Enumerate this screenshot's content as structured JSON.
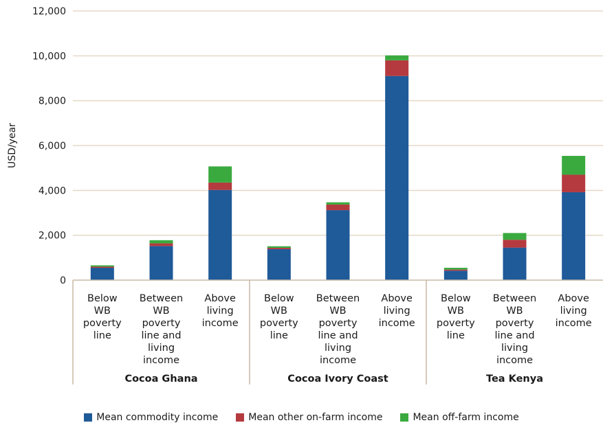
{
  "chart_data": {
    "type": "bar",
    "stacked": true,
    "ylabel": "USD/year",
    "ylim": [
      0,
      12000
    ],
    "yticks": [
      0,
      2000,
      4000,
      6000,
      8000,
      10000,
      12000
    ],
    "ytick_labels": [
      "0",
      "2,000",
      "4,000",
      "6,000",
      "8,000",
      "10,000",
      "12,000"
    ],
    "grid": "horizontal",
    "legend_position": "bottom",
    "groups": [
      {
        "label": "Cocoa Ghana",
        "categories": [
          "Below WB poverty line",
          "Between WB poverty line and living income",
          "Above living income"
        ]
      },
      {
        "label": "Cocoa Ivory Coast",
        "categories": [
          "Below WB poverty line",
          "Between WB poverty line and living income",
          "Above living income"
        ]
      },
      {
        "label": "Tea Kenya",
        "categories": [
          "Below WB poverty line",
          "Between WB poverty line and living income",
          "Above living income"
        ]
      }
    ],
    "category_lines": [
      [
        "Below",
        "WB",
        "poverty",
        "line"
      ],
      [
        "Between",
        "WB",
        "poverty",
        "line and",
        "living",
        "income"
      ],
      [
        "Above",
        "living",
        "income"
      ],
      [
        "Below",
        "WB",
        "poverty",
        "line"
      ],
      [
        "Between",
        "WB",
        "poverty",
        "line and",
        "living",
        "income"
      ],
      [
        "Above",
        "living",
        "income"
      ],
      [
        "Below",
        "WB",
        "poverty",
        "line"
      ],
      [
        "Between",
        "WB",
        "poverty",
        "line and",
        "living",
        "income"
      ],
      [
        "Above",
        "living",
        "income"
      ]
    ],
    "series": [
      {
        "name": "Mean commodity income",
        "color": "#1f5a99",
        "values": [
          550,
          1520,
          4020,
          1380,
          3120,
          9100,
          420,
          1450,
          3920
        ]
      },
      {
        "name": "Mean other on-farm income",
        "color": "#b53a3f",
        "values": [
          50,
          120,
          330,
          60,
          250,
          700,
          50,
          350,
          780
        ]
      },
      {
        "name": "Mean off-farm income",
        "color": "#3aaa3f",
        "values": [
          60,
          140,
          720,
          70,
          100,
          220,
          80,
          300,
          840
        ]
      }
    ]
  }
}
